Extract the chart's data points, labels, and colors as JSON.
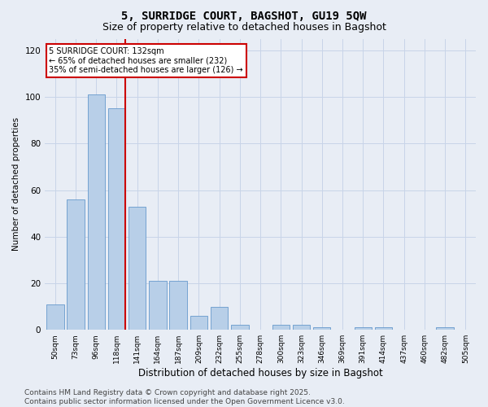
{
  "title": "5, SURRIDGE COURT, BAGSHOT, GU19 5QW",
  "subtitle": "Size of property relative to detached houses in Bagshot",
  "xlabel": "Distribution of detached houses by size in Bagshot",
  "ylabel": "Number of detached properties",
  "categories": [
    "50sqm",
    "73sqm",
    "96sqm",
    "118sqm",
    "141sqm",
    "164sqm",
    "187sqm",
    "209sqm",
    "232sqm",
    "255sqm",
    "278sqm",
    "300sqm",
    "323sqm",
    "346sqm",
    "369sqm",
    "391sqm",
    "414sqm",
    "437sqm",
    "460sqm",
    "482sqm",
    "505sqm"
  ],
  "values": [
    11,
    56,
    101,
    95,
    53,
    21,
    21,
    6,
    10,
    2,
    0,
    2,
    2,
    1,
    0,
    1,
    1,
    0,
    0,
    1,
    0
  ],
  "bar_color": "#b8cfe8",
  "bar_edge_color": "#6699cc",
  "grid_color": "#c8d4e8",
  "background_color": "#e8edf5",
  "vline_color": "#cc0000",
  "annotation_text": "5 SURRIDGE COURT: 132sqm\n← 65% of detached houses are smaller (232)\n35% of semi-detached houses are larger (126) →",
  "annotation_box_color": "#ffffff",
  "annotation_box_edge": "#cc0000",
  "ylim": [
    0,
    125
  ],
  "yticks": [
    0,
    20,
    40,
    60,
    80,
    100,
    120
  ],
  "footer": "Contains HM Land Registry data © Crown copyright and database right 2025.\nContains public sector information licensed under the Open Government Licence v3.0.",
  "title_fontsize": 10,
  "subtitle_fontsize": 9,
  "footer_fontsize": 6.5
}
